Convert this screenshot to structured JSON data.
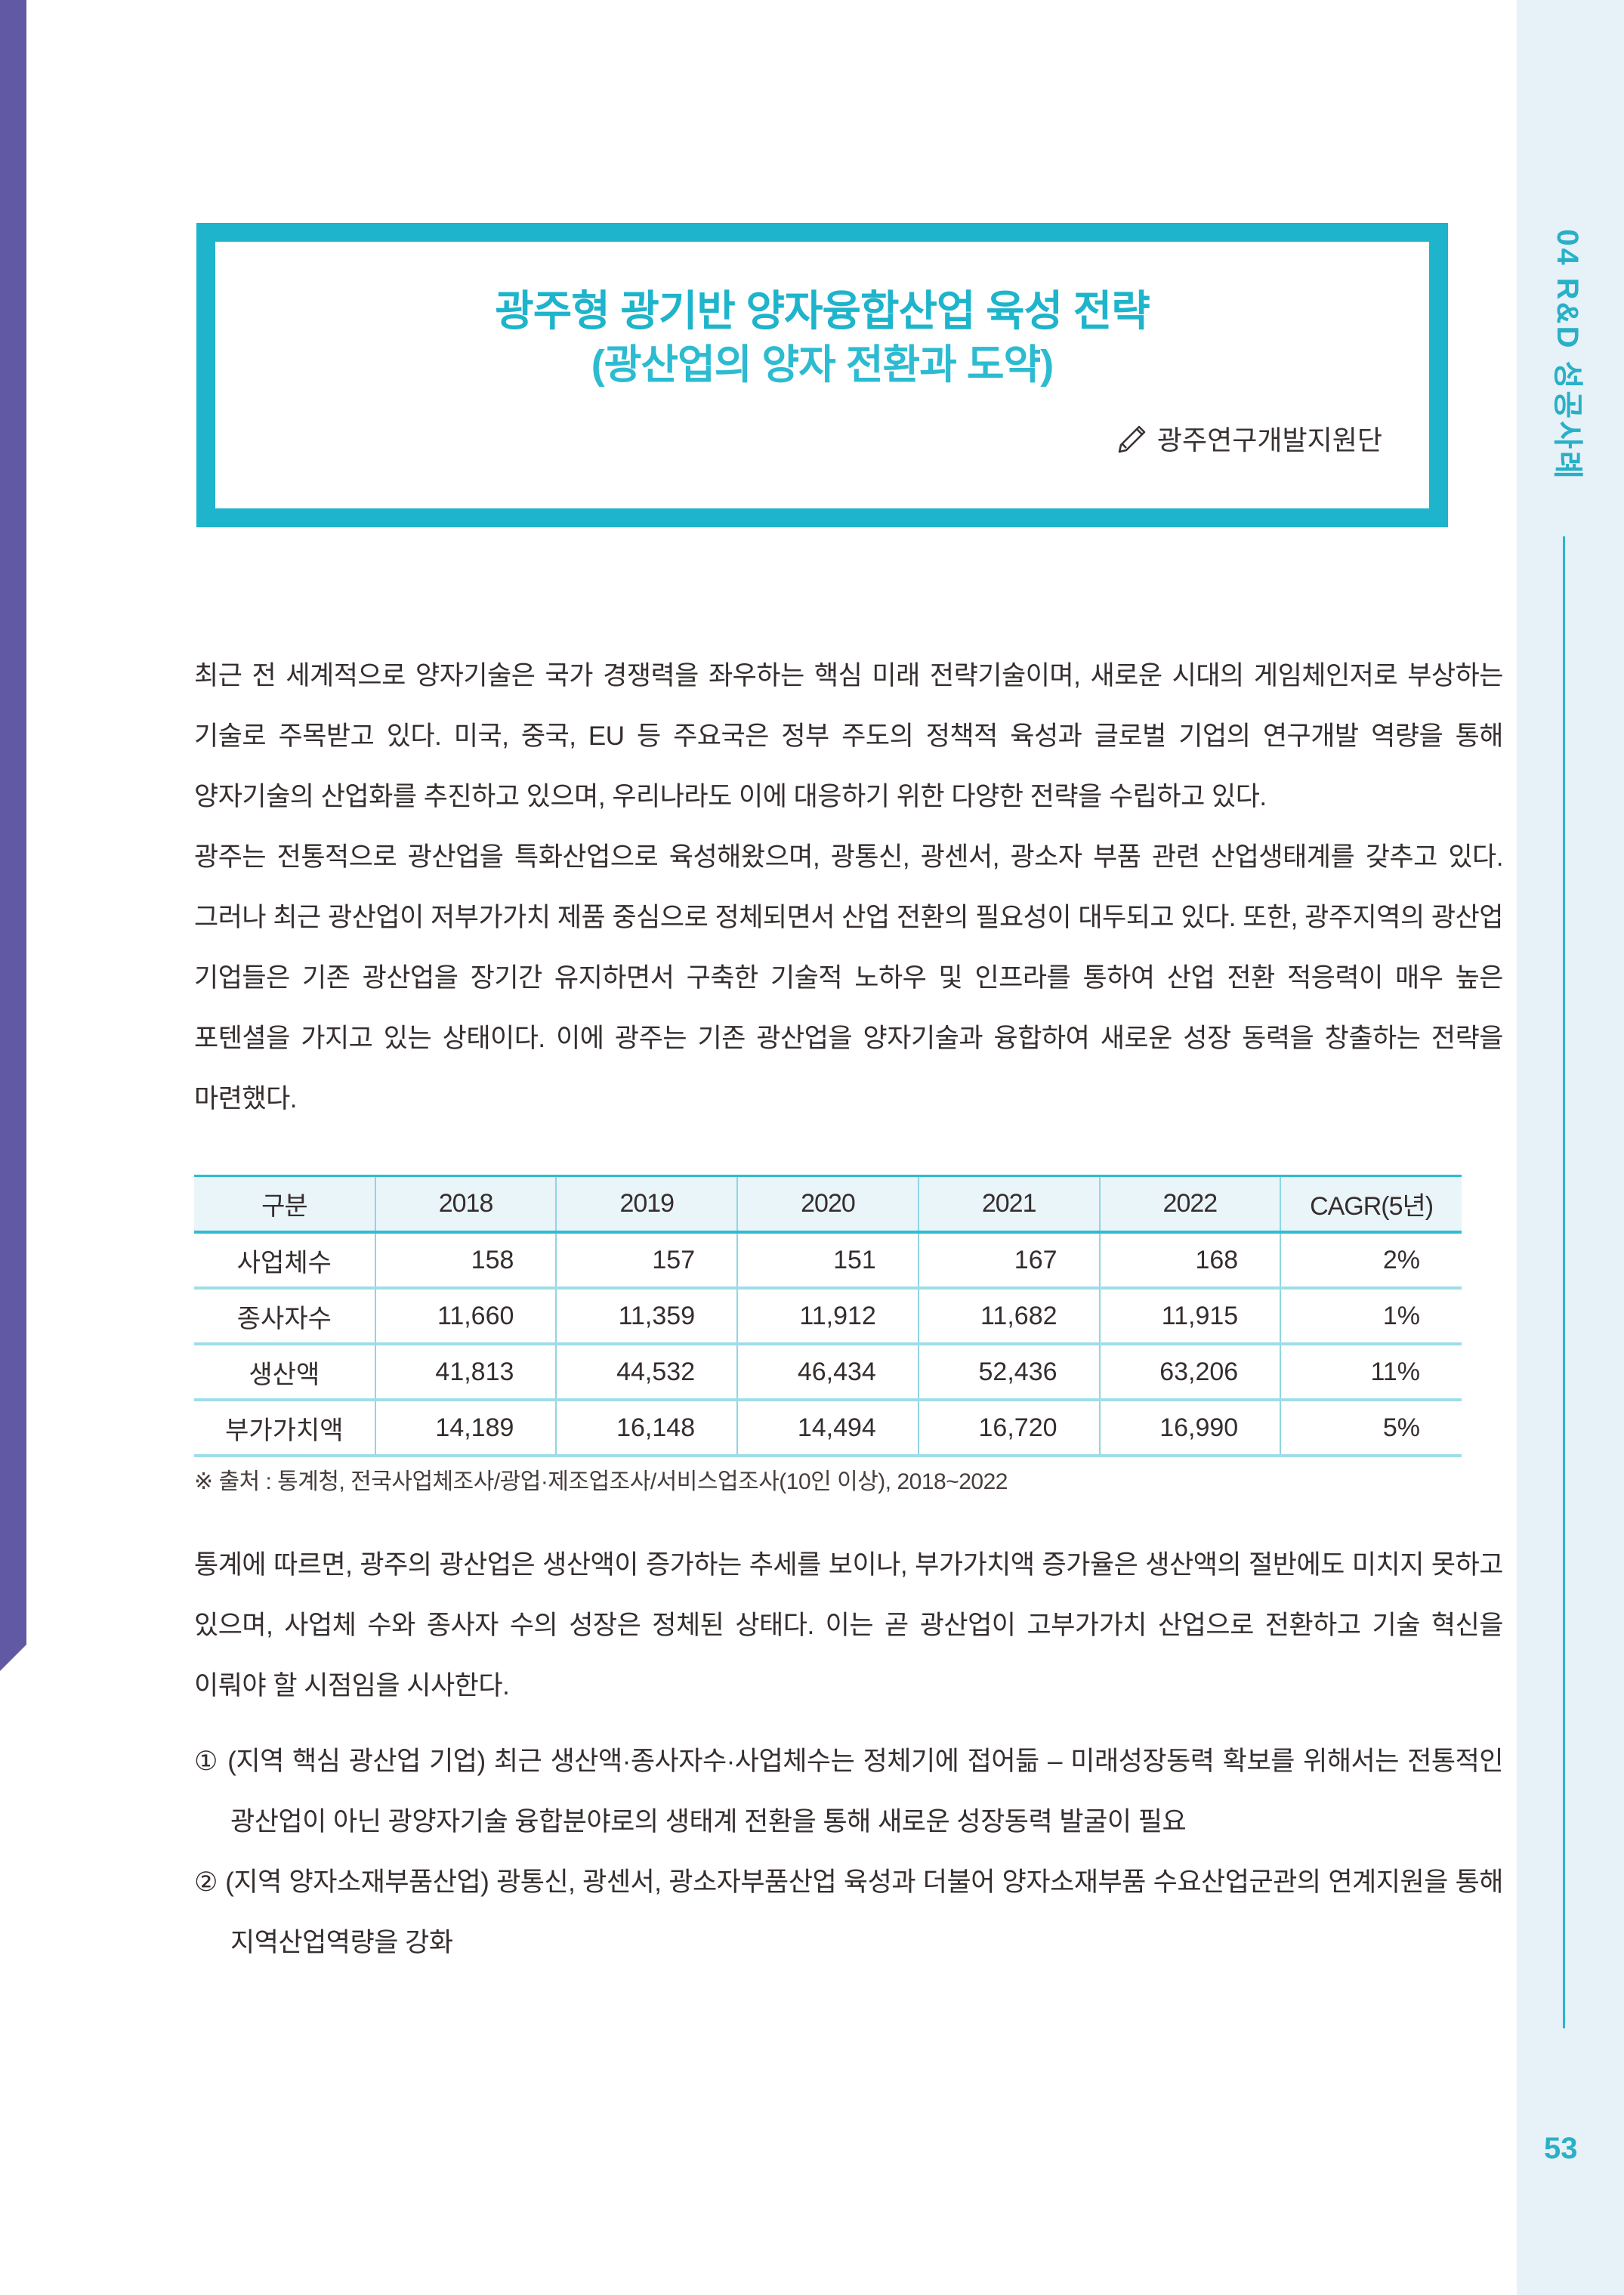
{
  "page": {
    "number": "53",
    "side_tab_label": "04 R&D 성공사례"
  },
  "colors": {
    "accent_teal": "#1eb4cb",
    "sidebar_bg": "#e7f1f8",
    "sidebar_text": "#29b0c7",
    "purple_bar": "#6159a4",
    "table_header_bg": "#eaf5fa",
    "body_text": "#362e2e"
  },
  "title_box": {
    "title_line1": "광주형 광기반 양자융합산업 육성 전략",
    "title_line2": "(광산업의 양자 전환과 도약)",
    "author_icon": "pencil-icon",
    "author": "광주연구개발지원단"
  },
  "paragraphs": {
    "p1": "최근 전 세계적으로 양자기술은 국가 경쟁력을 좌우하는 핵심 미래 전략기술이며, 새로운 시대의 게임체인저로 부상하는 기술로 주목받고 있다. 미국, 중국, EU 등 주요국은 정부 주도의 정책적 육성과 글로벌 기업의 연구개발 역량을 통해 양자기술의 산업화를 추진하고 있으며, 우리나라도 이에 대응하기 위한 다양한 전략을 수립하고 있다.",
    "p2": "광주는 전통적으로 광산업을 특화산업으로 육성해왔으며, 광통신, 광센서, 광소자 부품 관련 산업생태계를 갖추고 있다. 그러나 최근 광산업이 저부가가치 제품 중심으로 정체되면서 산업 전환의 필요성이 대두되고 있다. 또한, 광주지역의 광산업 기업들은 기존 광산업을 장기간 유지하면서 구축한 기술적 노하우 및 인프라를 통하여 산업 전환 적응력이 매우 높은 포텐셜을 가지고 있는 상태이다. 이에 광주는 기존 광산업을 양자기술과 융합하여 새로운 성장 동력을 창출하는 전략을 마련했다.",
    "p3": "통계에 따르면, 광주의 광산업은 생산액이 증가하는 추세를 보이나, 부가가치액 증가율은 생산액의 절반에도 미치지 못하고 있으며, 사업체 수와 종사자 수의 성장은 정체된 상태다. 이는 곧 광산업이 고부가가치 산업으로 전환하고 기술 혁신을 이뤄야 할 시점임을 시사한다."
  },
  "table": {
    "columns": [
      "구분",
      "2018",
      "2019",
      "2020",
      "2021",
      "2022",
      "CAGR(5년)"
    ],
    "rows": [
      {
        "label": "사업체수",
        "values": [
          "158",
          "157",
          "151",
          "167",
          "168",
          "2%"
        ]
      },
      {
        "label": "종사자수",
        "values": [
          "11,660",
          "11,359",
          "11,912",
          "11,682",
          "11,915",
          "1%"
        ]
      },
      {
        "label": "생산액",
        "values": [
          "41,813",
          "44,532",
          "46,434",
          "52,436",
          "63,206",
          "11%"
        ]
      },
      {
        "label": "부가가치액",
        "values": [
          "14,189",
          "16,148",
          "14,494",
          "16,720",
          "16,990",
          "5%"
        ]
      }
    ],
    "source_note": "※ 출처 : 통계청, 전국사업체조사/광업·제조업조사/서비스업조사(10인 이상), 2018~2022"
  },
  "key_points": [
    {
      "marker": "①",
      "text": "(지역 핵심 광산업 기업) 최근 생산액·종사자수·사업체수는 정체기에 접어듦 – 미래성장동력 확보를 위해서는 전통적인 광산업이 아닌 광양자기술 융합분야로의 생태계 전환을 통해 새로운 성장동력 발굴이 필요"
    },
    {
      "marker": "②",
      "text": "(지역 양자소재부품산업) 광통신, 광센서, 광소자부품산업 육성과 더불어 양자소재부품 수요산업군관의 연계지원을 통해 지역산업역량을 강화"
    }
  ]
}
